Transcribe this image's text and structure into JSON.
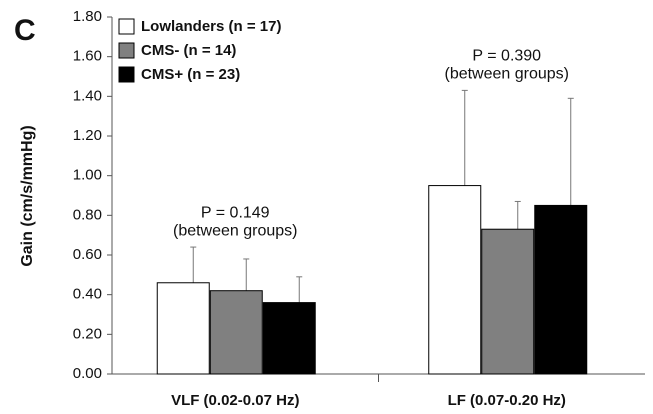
{
  "chart_data": {
    "type": "bar",
    "panel_label": "C",
    "y_label": "Gain (cm/s/mmHg)",
    "categories": [
      "VLF (0.02-0.07 Hz)",
      "LF (0.07-0.20 Hz)"
    ],
    "series": [
      {
        "name": "Lowlanders (n = 17)",
        "color": "#ffffff",
        "values": [
          0.46,
          0.95
        ],
        "errors": [
          0.18,
          0.48
        ]
      },
      {
        "name": "CMS- (n = 14)",
        "color": "#808080",
        "values": [
          0.42,
          0.73
        ],
        "errors": [
          0.16,
          0.14
        ]
      },
      {
        "name": "CMS+ (n = 23)",
        "color": "#000000",
        "values": [
          0.36,
          0.85
        ],
        "errors": [
          0.13,
          0.54
        ]
      }
    ],
    "annotations": [
      {
        "text": "P = 0.149",
        "note": "(between groups)"
      },
      {
        "text": "P = 0.390",
        "note": "(between groups)"
      }
    ],
    "ylim": [
      0,
      1.8
    ],
    "yticks": [
      {
        "value": 0,
        "label": "0.00"
      },
      {
        "value": 0.2,
        "label": "0.20"
      },
      {
        "value": 0.4,
        "label": "0.40"
      },
      {
        "value": 0.6,
        "label": "0.60"
      },
      {
        "value": 0.8,
        "label": "0.80"
      },
      {
        "value": 1.0,
        "label": "1.00"
      },
      {
        "value": 1.2,
        "label": "1.20"
      },
      {
        "value": 1.4,
        "label": "1.40"
      },
      {
        "value": 1.6,
        "label": "1.60"
      },
      {
        "value": 1.8,
        "label": "1.80"
      }
    ]
  }
}
